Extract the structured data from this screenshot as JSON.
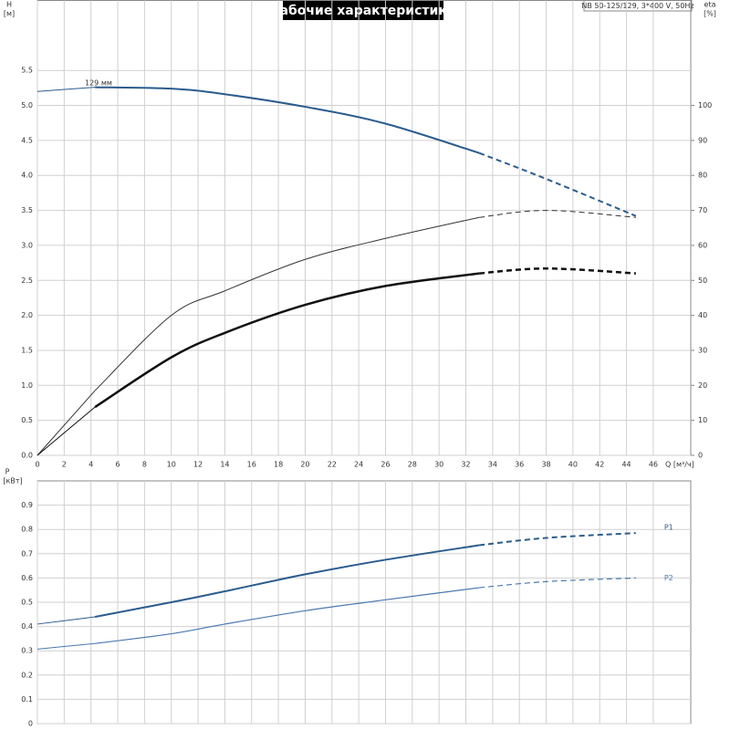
{
  "chart_data": [
    {
      "type": "line",
      "title": "Рабочие характеристики",
      "subtitle": "NB 50-125/129, 3*400 V, 50Hz",
      "ylabel": "H",
      "yunit": "[м]",
      "y2label": "eta",
      "y2unit": "[%]",
      "xlabel": "Q [м³/ч]",
      "xlim": [
        0,
        48.8
      ],
      "xticks": [
        0,
        2,
        4,
        6,
        8,
        10,
        12,
        14,
        16,
        18,
        20,
        22,
        24,
        26,
        28,
        30,
        32,
        34,
        36,
        38,
        40,
        42,
        44,
        46
      ],
      "ylim": [
        0,
        6.5
      ],
      "yticks": [
        {
          "value": 0,
          "label": "0.0"
        },
        0.5,
        {
          "value": 1,
          "label": "1.0"
        },
        1.5,
        {
          "value": 2,
          "label": "2.0"
        },
        2.5,
        {
          "value": 3,
          "label": "3.0"
        },
        3.5,
        {
          "value": 4,
          "label": "4.0"
        },
        4.5,
        {
          "value": 5,
          "label": "5.0"
        },
        5.5
      ],
      "y2lim": [
        0,
        130
      ],
      "y2ticks": [
        0,
        10,
        20,
        30,
        40,
        50,
        60,
        70,
        80,
        90,
        100
      ],
      "grid": true,
      "dash_from": 33,
      "x": [
        0,
        4.3,
        10,
        14,
        20,
        26,
        33,
        38,
        44.7
      ],
      "series": [
        {
          "name": "129 мм",
          "color": "#2b5c8e",
          "width": 2,
          "values": [
            5.2,
            5.26,
            5.24,
            5.16,
            4.98,
            4.74,
            4.32,
            3.95,
            3.42
          ]
        },
        {
          "color": "#333333",
          "width": 1,
          "axis": "y2",
          "values": [
            0,
            18.5,
            40,
            47,
            56,
            62,
            68,
            70,
            68
          ]
        },
        {
          "color": "#111111",
          "width": 2.5,
          "axis": "y2",
          "values": [
            0,
            13.8,
            28,
            35,
            43,
            48.4,
            52,
            53.4,
            52
          ]
        }
      ]
    },
    {
      "type": "line",
      "ylabel": "P",
      "yunit": "[кВт]",
      "xlim": [
        0,
        48.8
      ],
      "xticks": [
        0,
        2,
        4,
        6,
        8,
        10,
        12,
        14,
        16,
        18,
        20,
        22,
        24,
        26,
        28,
        30,
        32,
        34,
        36,
        38,
        40,
        42,
        44,
        46
      ],
      "ylim": [
        0,
        1
      ],
      "yticks": [
        0,
        0.1,
        0.2,
        0.3,
        0.4,
        0.5,
        0.6,
        0.7,
        0.8,
        0.9
      ],
      "grid": true,
      "dash_from": 33,
      "x": [
        0,
        4.3,
        10,
        14,
        20,
        26,
        33,
        38,
        44.7
      ],
      "series": [
        {
          "name": "P1",
          "color": "#2b5c8e",
          "width": 2,
          "values": [
            0.41,
            0.44,
            0.5,
            0.545,
            0.615,
            0.675,
            0.735,
            0.765,
            0.785
          ]
        },
        {
          "name": "P2",
          "color": "#4a78b0",
          "width": 1.2,
          "values": [
            0.307,
            0.33,
            0.37,
            0.41,
            0.465,
            0.51,
            0.56,
            0.585,
            0.6
          ]
        }
      ]
    }
  ]
}
